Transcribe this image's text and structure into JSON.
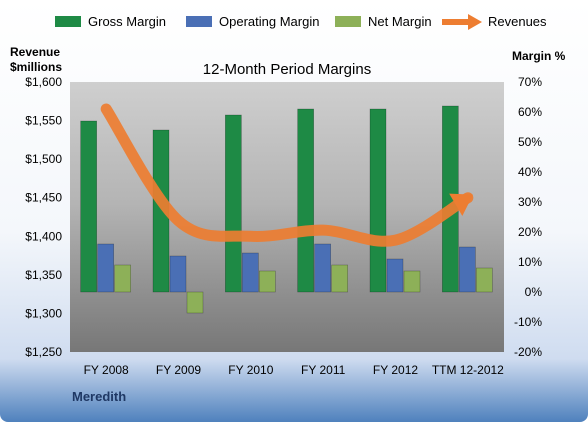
{
  "chart_data": {
    "type": "bar",
    "title": "12-Month Period Margins",
    "company": "Meredith",
    "categories": [
      "FY 2008",
      "FY 2009",
      "FY 2010",
      "FY 2011",
      "FY 2012",
      "TTM 12-2012"
    ],
    "y_left": {
      "label_line1": "Revenue",
      "label_line2": "$millions",
      "min": 1250,
      "max": 1600,
      "step": 50,
      "ticks": [
        "$1,250",
        "$1,300",
        "$1,350",
        "$1,400",
        "$1,450",
        "$1,500",
        "$1,550",
        "$1,600"
      ]
    },
    "y_right": {
      "label": "Margin %",
      "min": -20,
      "max": 70,
      "step": 10,
      "ticks": [
        "-20%",
        "-10%",
        "0%",
        "10%",
        "20%",
        "30%",
        "40%",
        "50%",
        "60%",
        "70%"
      ]
    },
    "series": [
      {
        "name": "Gross Margin",
        "axis": "right",
        "kind": "bar",
        "color": "#1e8a45",
        "values": [
          57,
          54,
          59,
          61,
          61,
          62
        ]
      },
      {
        "name": "Operating Margin",
        "axis": "right",
        "kind": "bar",
        "color": "#4a6fb5",
        "values": [
          16,
          12,
          13,
          16,
          11,
          15
        ]
      },
      {
        "name": "Net Margin",
        "axis": "right",
        "kind": "bar",
        "color": "#8db058",
        "values": [
          9,
          -7,
          7,
          9,
          7,
          8
        ]
      },
      {
        "name": "Revenues",
        "axis": "left",
        "kind": "line",
        "color": "#ed7d31",
        "values": [
          1565,
          1420,
          1400,
          1408,
          1395,
          1450
        ]
      }
    ],
    "legend_position": "top",
    "grid": false
  }
}
